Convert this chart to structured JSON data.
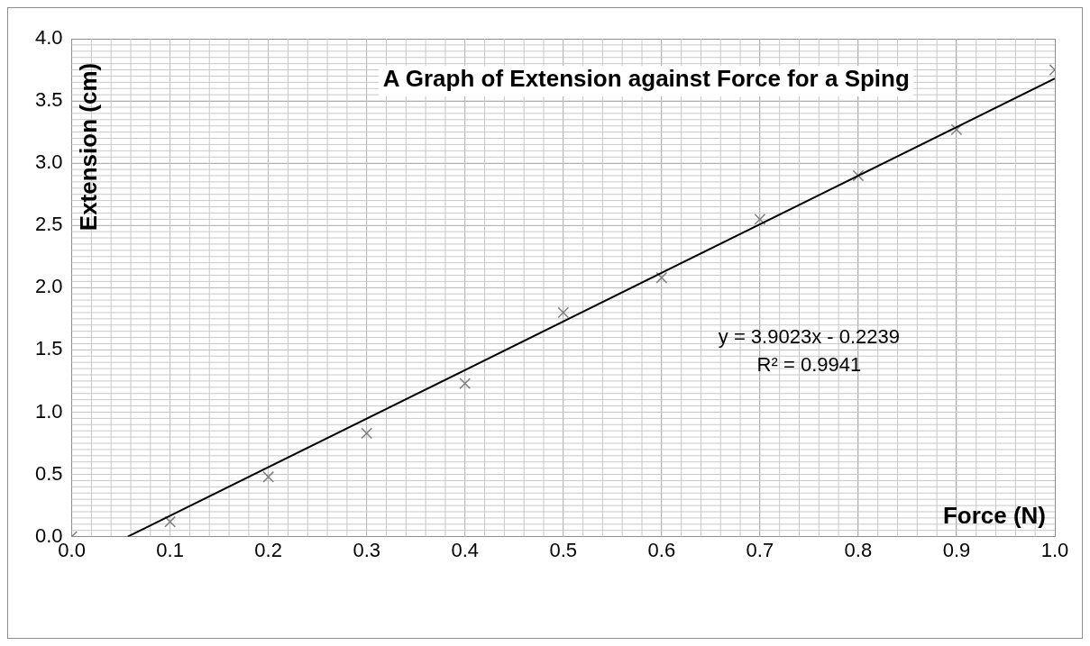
{
  "chart_data": {
    "type": "scatter",
    "title": "A Graph of Extension against Force for a Sping",
    "xlabel": "Force (N)",
    "ylabel": "Extension (cm)",
    "x": [
      0,
      0.1,
      0.2,
      0.3,
      0.4,
      0.5,
      0.6,
      0.7,
      0.8,
      0.9,
      1.0
    ],
    "series": [
      {
        "color": "#7f7f7f",
        "marker": "cross",
        "values": [
          0,
          0.12,
          0.48,
          0.83,
          1.23,
          1.8,
          2.08,
          2.55,
          2.9,
          3.27,
          3.75
        ]
      },
      {
        "type": "line",
        "color": "#000000",
        "marker": "none",
        "line_style": "solid",
        "x": [
          0.057,
          1.0
        ],
        "values": [
          0,
          3.68
        ]
      }
    ],
    "annotations": [
      "y = 3.9023x - 0.2239",
      "R² = 0.9941"
    ],
    "xlim": [
      0,
      1.0
    ],
    "xticks": [
      {
        "value": 0,
        "label": "0.0"
      },
      0.1,
      0.2,
      0.3,
      0.4,
      0.5,
      0.6,
      0.7,
      0.8,
      0.9,
      {
        "value": 1.0,
        "label": "1.0"
      }
    ],
    "ylim": [
      0,
      4.0
    ],
    "yticks": [
      {
        "value": 0,
        "label": "0.0"
      },
      0.5,
      {
        "value": 1.0,
        "label": "1.0"
      },
      1.5,
      {
        "value": 2.0,
        "label": "2.0"
      },
      2.5,
      {
        "value": 3.0,
        "label": "3.0"
      },
      3.5,
      {
        "value": 4.0,
        "label": "4.0"
      }
    ],
    "grid": true,
    "legend": false
  }
}
